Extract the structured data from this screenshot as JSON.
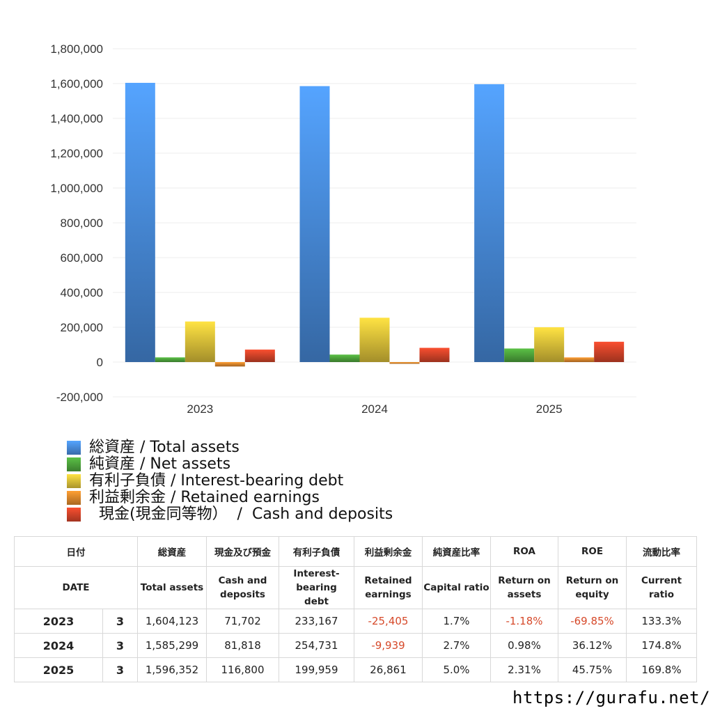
{
  "chart_data": {
    "type": "bar",
    "categories": [
      "2023",
      "2024",
      "2025"
    ],
    "ylim": [
      -200000,
      1800000
    ],
    "yticks": [
      1800000,
      1600000,
      1400000,
      1200000,
      1000000,
      800000,
      600000,
      400000,
      200000,
      0,
      -200000
    ],
    "ytick_labels": [
      "1,800,000",
      "1,600,000",
      "1,400,000",
      "1,200,000",
      "1,000,000",
      "800,000",
      "600,000",
      "400,000",
      "200,000",
      "0",
      "-200,000"
    ],
    "grid": true,
    "legend_position": "bottom-left",
    "series": [
      {
        "name": "総資産 / Total assets",
        "values": [
          1604123,
          1585299,
          1596352
        ],
        "color": "#4a8fe3"
      },
      {
        "name": "純資産 / Net assets",
        "values": [
          27000,
          43000,
          78000
        ],
        "color": "#4fa83d"
      },
      {
        "name": "有利子負債 / Interest-bearing debt",
        "values": [
          233167,
          254731,
          199959
        ],
        "color": "#e3c53a"
      },
      {
        "name": "利益剰余金 / Retained earnings",
        "values": [
          -25405,
          -9939,
          26861
        ],
        "color": "#e38a2c"
      },
      {
        "name": "  現金(現金同等物）  /  Cash and deposits",
        "values": [
          71702,
          81818,
          116800
        ],
        "color": "#d9452a"
      }
    ]
  },
  "table": {
    "headers_ja": [
      "日付",
      "総資産",
      "現金及び預金",
      "有利子負債",
      "利益剰余金",
      "純資産比率",
      "ROA",
      "ROE",
      "流動比率"
    ],
    "headers_en": [
      "DATE",
      "Total assets",
      "Cash and\ndeposits",
      "Interest-\nbearing\ndebt",
      "Retained\nearnings",
      "Capital ratio",
      "Return on\nassets",
      "Return on\nequity",
      "Current\nratio"
    ],
    "rows": [
      {
        "year": "2023",
        "month": "3",
        "cells": [
          "1,604,123",
          "71,702",
          "233,167",
          "-25,405",
          "1.7%",
          "-1.18%",
          "-69.85%",
          "133.3%"
        ]
      },
      {
        "year": "2024",
        "month": "3",
        "cells": [
          "1,585,299",
          "81,818",
          "254,731",
          "-9,939",
          "2.7%",
          "0.98%",
          "36.12%",
          "174.8%"
        ]
      },
      {
        "year": "2025",
        "month": "3",
        "cells": [
          "1,596,352",
          "116,800",
          "199,959",
          "26,861",
          "5.0%",
          "2.31%",
          "45.75%",
          "169.8%"
        ]
      }
    ]
  },
  "site_url": "https://gurafu.net/"
}
